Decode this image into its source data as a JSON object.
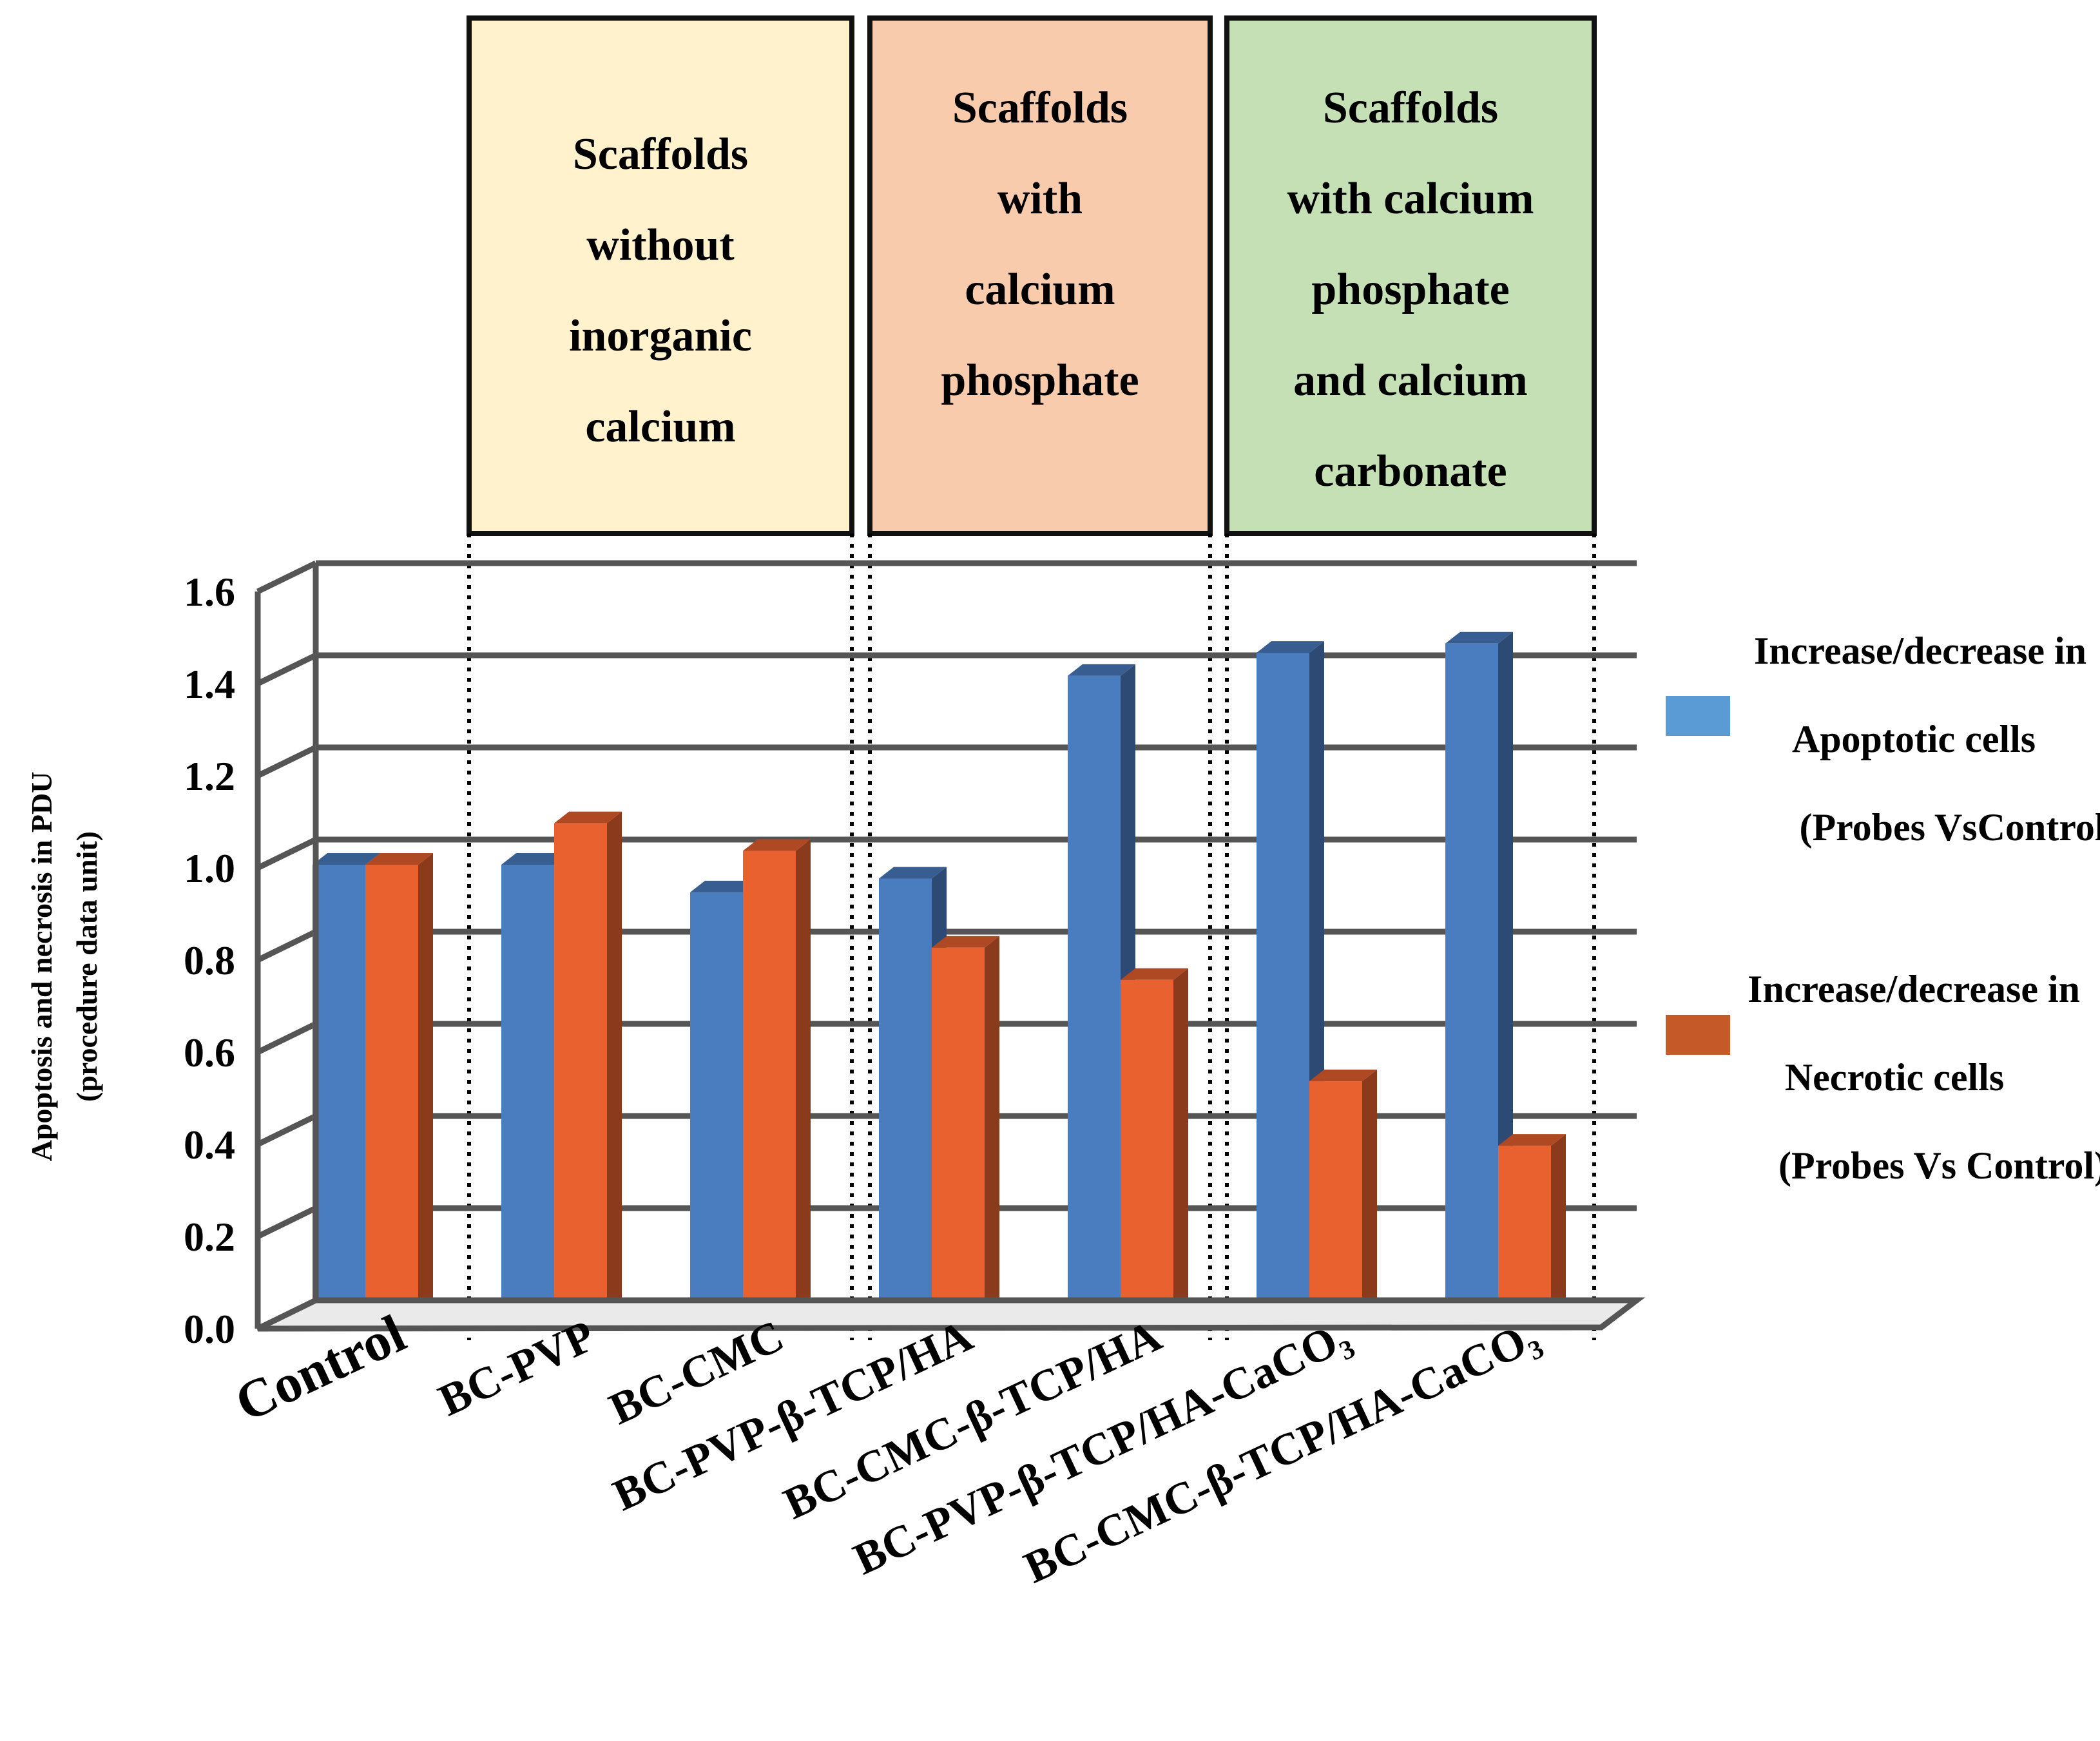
{
  "chart_data": {
    "type": "bar",
    "title": "",
    "xlabel": "",
    "ylabel": "Apoptosis and necrosis in PDU",
    "ylabel_line2": "(procedure data unit)",
    "ylim": [
      0,
      1.6
    ],
    "yticks": [
      "0.0",
      "0.2",
      "0.4",
      "0.6",
      "0.8",
      "1.0",
      "1.2",
      "1.4",
      "1.6"
    ],
    "grid": true,
    "legend_position": "right",
    "categories": [
      "Control",
      "BC-PVP",
      "BC-CMC",
      "BC-PVP-β-TCP/HA",
      "BC-CMC-β-TCP/HA",
      "BC-PVP-β-TCP/HA-CaCO₃",
      "BC-CMC-β-TCP/HA-CaCO₃"
    ],
    "series": [
      {
        "name": "Increase/decrease in Apoptotic cells (Probes VsControl)",
        "color": "#4a7cc0",
        "values": [
          1.0,
          1.0,
          0.94,
          0.97,
          1.41,
          1.46,
          1.48
        ]
      },
      {
        "name": "Increase/decrease in Necrotic cells (Probes Vs Control)",
        "color": "#e8612f",
        "values": [
          1.0,
          1.09,
          1.03,
          0.82,
          0.75,
          0.53,
          0.39
        ]
      }
    ],
    "groups": [
      {
        "label_lines": [
          "Scaffolds",
          "without",
          "inorganic",
          "calcium"
        ],
        "color": "#fff2cc"
      },
      {
        "label_lines": [
          "Scaffolds",
          "with",
          "calcium",
          "phosphate"
        ],
        "color": "#f8cbad"
      },
      {
        "label_lines": [
          "Scaffolds",
          "with calcium",
          "phosphate",
          "and calcium",
          "carbonate"
        ],
        "color": "#c5e0b4"
      }
    ],
    "legend": [
      {
        "lines": [
          "Increase/decrease in",
          "Apoptotic cells",
          "(Probes VsControl)"
        ],
        "color": "#5b9bd5"
      },
      {
        "lines": [
          "Increase/decrease in",
          "Necrotic cells",
          "(Probes Vs Control)"
        ],
        "color": "#c55a28"
      }
    ]
  }
}
